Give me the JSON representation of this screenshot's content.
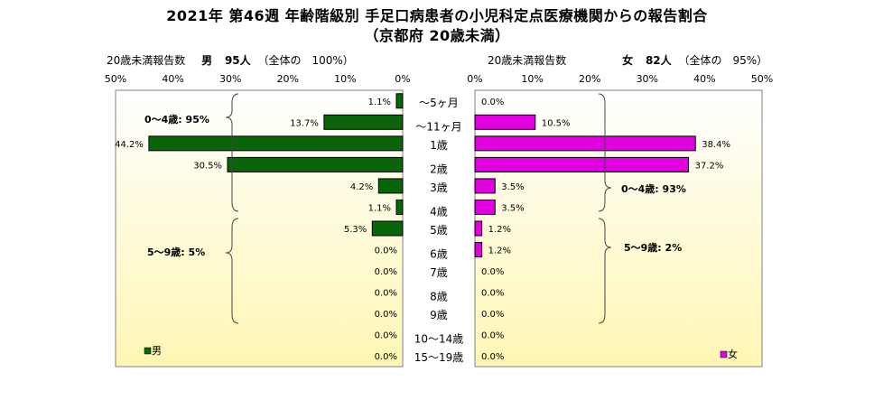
{
  "title": {
    "line1": "2021年 第46週 年齢階級別 手足口病患者の小児科定点医療機関からの報告割合",
    "line2": "（京都府 20歳未満）"
  },
  "male_header": {
    "label": "20歳未満報告数",
    "sex": "男",
    "count": "95人",
    "share": "（全体の　100%）"
  },
  "female_header": {
    "label": "20歳未満報告数",
    "sex": "女",
    "count": "82人",
    "share": "（全体の　95%）"
  },
  "annotations": {
    "male_0_4": "0～4歳: 95%",
    "male_5_9": "5～9歳: 5%",
    "female_0_4": "0～4歳: 93%",
    "female_5_9": "5～9歳: 2%"
  },
  "colors": {
    "male": "#0a640a",
    "female": "#e000e0",
    "background_top": "#ffffff",
    "background_bottom": "#fff6b4"
  },
  "chart_data": {
    "type": "bar",
    "orientation": "horizontal-butterfly",
    "categories": [
      "～5ヶ月",
      "～11ヶ月",
      "1歳",
      "2歳",
      "3歳",
      "4歳",
      "5歳",
      "6歳",
      "7歳",
      "8歳",
      "9歳",
      "10～14歳",
      "15～19歳"
    ],
    "xlim": [
      0,
      50
    ],
    "x_ticks": [
      "0%",
      "10%",
      "20%",
      "30%",
      "40%",
      "50%"
    ],
    "series": [
      {
        "name": "男",
        "values": [
          1.1,
          13.7,
          44.2,
          30.5,
          4.2,
          1.1,
          5.3,
          0.0,
          0.0,
          0.0,
          0.0,
          0.0,
          0.0
        ],
        "labels": [
          "1.1%",
          "13.7%",
          "44.2%",
          "30.5%",
          "4.2%",
          "1.1%",
          "5.3%",
          "0.0%",
          "0.0%",
          "0.0%",
          "0.0%",
          "0.0%",
          "0.0%"
        ]
      },
      {
        "name": "女",
        "values": [
          0.0,
          10.5,
          38.4,
          37.2,
          3.5,
          3.5,
          1.2,
          1.2,
          0.0,
          0.0,
          0.0,
          0.0,
          0.0
        ],
        "labels": [
          "0.0%",
          "10.5%",
          "38.4%",
          "37.2%",
          "3.5%",
          "3.5%",
          "1.2%",
          "1.2%",
          "0.0%",
          "0.0%",
          "0.0%",
          "0.0%",
          "0.0%"
        ]
      }
    ],
    "legend": "bottom-left / bottom-right"
  }
}
